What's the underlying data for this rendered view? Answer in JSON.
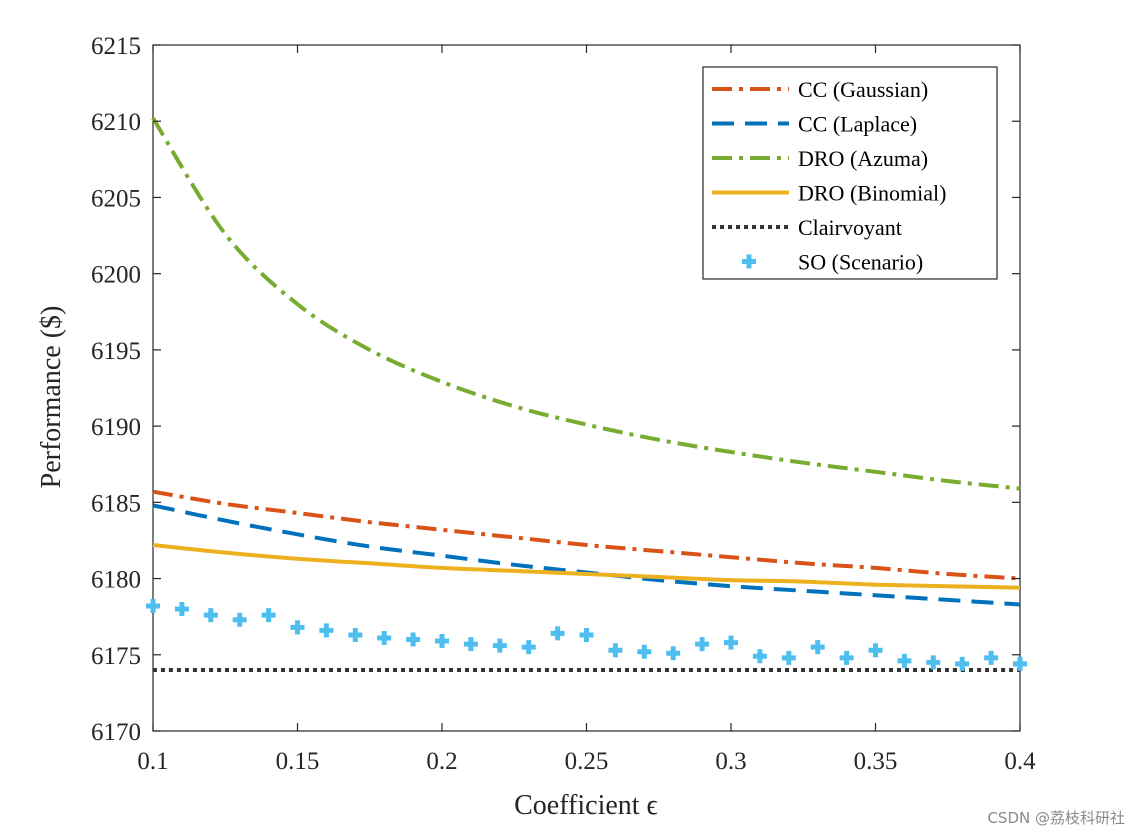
{
  "chart_data": {
    "type": "line",
    "xlabel": "Coefficient ϵ",
    "ylabel": "Performance ($)",
    "xlim": [
      0.1,
      0.4
    ],
    "ylim": [
      6170,
      6215
    ],
    "x_ticks": [
      "0.1",
      "0.15",
      "0.2",
      "0.25",
      "0.3",
      "0.35",
      "0.4"
    ],
    "y_ticks": [
      "6170",
      "6175",
      "6180",
      "6185",
      "6190",
      "6195",
      "6200",
      "6205",
      "6210",
      "6215"
    ],
    "grid": false,
    "legend_position": "top-right",
    "x": [
      0.1,
      0.125,
      0.15,
      0.175,
      0.2,
      0.225,
      0.25,
      0.275,
      0.3,
      0.325,
      0.35,
      0.375,
      0.4
    ],
    "series": [
      {
        "name": "CC (Gaussian)",
        "style": "dashdot",
        "color": "#D95319",
        "values": [
          6185.7,
          6184.9,
          6184.3,
          6183.7,
          6183.2,
          6182.7,
          6182.2,
          6181.8,
          6181.4,
          6181.0,
          6180.7,
          6180.3,
          6180.0
        ]
      },
      {
        "name": "CC (Laplace)",
        "style": "dashed",
        "color": "#0072BD",
        "values": [
          6184.8,
          6183.8,
          6182.9,
          6182.1,
          6181.5,
          6180.9,
          6180.4,
          6179.9,
          6179.5,
          6179.2,
          6178.9,
          6178.6,
          6178.3
        ]
      },
      {
        "name": "DRO (Azuma)",
        "style": "dashdot",
        "color": "#77AC30",
        "values": [
          6210.2,
          6202.6,
          6198.0,
          6195.0,
          6192.9,
          6191.3,
          6190.1,
          6189.1,
          6188.3,
          6187.6,
          6187.0,
          6186.4,
          6185.9
        ]
      },
      {
        "name": "DRO (Binomial)",
        "style": "solid",
        "color": "#EDB120",
        "values": [
          6182.2,
          6181.7,
          6181.3,
          6181.0,
          6180.7,
          6180.5,
          6180.3,
          6180.1,
          6179.9,
          6179.8,
          6179.6,
          6179.5,
          6179.4
        ]
      },
      {
        "name": "Clairvoyant",
        "style": "dotted",
        "color": "#333333",
        "values": [
          6174.0,
          6174.0,
          6174.0,
          6174.0,
          6174.0,
          6174.0,
          6174.0,
          6174.0,
          6174.0,
          6174.0,
          6174.0,
          6174.0,
          6174.0
        ]
      }
    ],
    "scatter_series": {
      "name": "SO (Scenario)",
      "marker": "plus",
      "color": "#4DBEEE",
      "points": [
        [
          0.1,
          6178.2
        ],
        [
          0.11,
          6178.0
        ],
        [
          0.12,
          6177.6
        ],
        [
          0.13,
          6177.3
        ],
        [
          0.14,
          6177.6
        ],
        [
          0.15,
          6176.8
        ],
        [
          0.16,
          6176.6
        ],
        [
          0.17,
          6176.3
        ],
        [
          0.18,
          6176.1
        ],
        [
          0.19,
          6176.0
        ],
        [
          0.2,
          6175.9
        ],
        [
          0.21,
          6175.7
        ],
        [
          0.22,
          6175.6
        ],
        [
          0.23,
          6175.5
        ],
        [
          0.24,
          6176.4
        ],
        [
          0.25,
          6176.3
        ],
        [
          0.26,
          6175.3
        ],
        [
          0.27,
          6175.2
        ],
        [
          0.28,
          6175.1
        ],
        [
          0.29,
          6175.7
        ],
        [
          0.3,
          6175.8
        ],
        [
          0.31,
          6174.9
        ],
        [
          0.32,
          6174.8
        ],
        [
          0.33,
          6175.5
        ],
        [
          0.34,
          6174.8
        ],
        [
          0.35,
          6175.3
        ],
        [
          0.36,
          6174.6
        ],
        [
          0.37,
          6174.5
        ],
        [
          0.38,
          6174.4
        ],
        [
          0.39,
          6174.8
        ],
        [
          0.4,
          6174.4
        ]
      ]
    }
  },
  "watermark": "CSDN @荔枝科研社"
}
